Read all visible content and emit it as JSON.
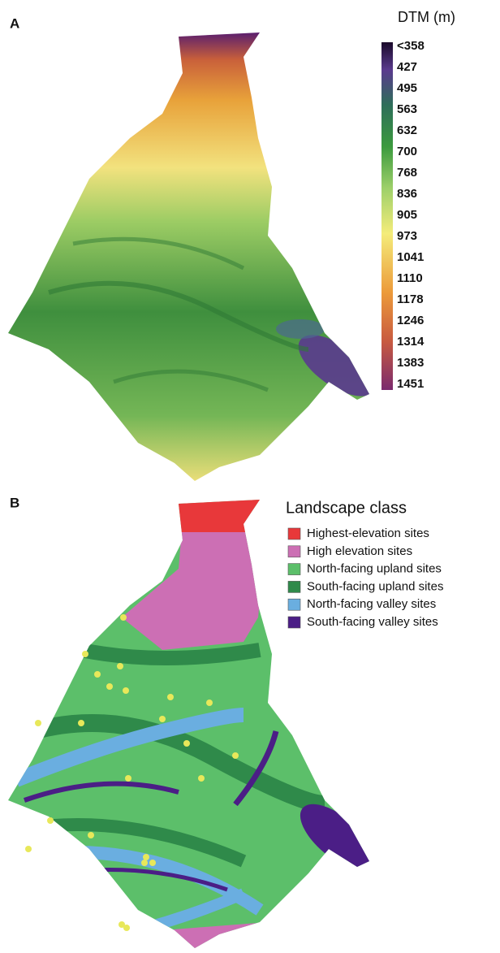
{
  "panel_a": {
    "label": "A",
    "legend_title": "DTM (m)",
    "scale_labels": [
      "<358",
      "427",
      "495",
      "563",
      "632",
      "700",
      "768",
      "836",
      "905",
      "973",
      "1041",
      "1110",
      "1178",
      "1246",
      "1314",
      "1383",
      "1451"
    ]
  },
  "panel_b": {
    "label": "B",
    "legend_title": "Landscape class",
    "classes": [
      {
        "name": "Highest-elevation sites",
        "color": "#e8383a"
      },
      {
        "name": "High elevation sites",
        "color": "#cc6fb4"
      },
      {
        "name": "North-facing upland sites",
        "color": "#5cbf6a"
      },
      {
        "name": "South-facing upland sites",
        "color": "#2f8a4a"
      },
      {
        "name": "North-facing valley sites",
        "color": "#6aaee0"
      },
      {
        "name": "South-facing valley sites",
        "color": "#4b1e86"
      }
    ]
  }
}
